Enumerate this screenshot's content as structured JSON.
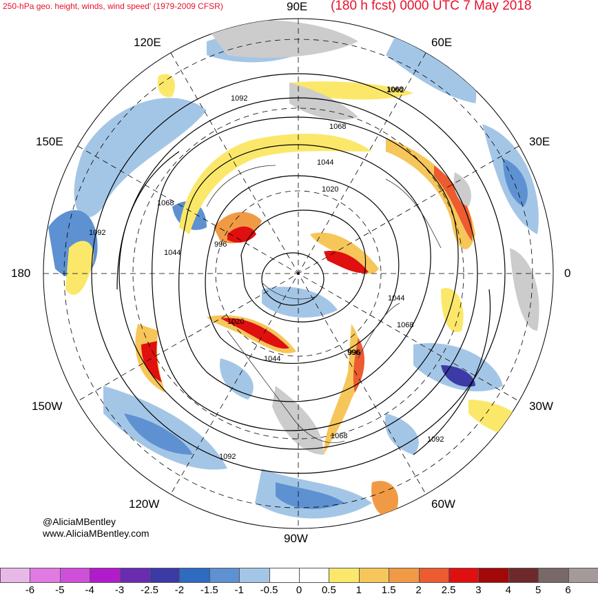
{
  "header": {
    "title_left": "250-hPa geo. height, winds, wind speed' (1979-2009 CFSR)",
    "title_right": "(180 h fcst) 0000 UTC 7 May 2018"
  },
  "longitude_labels": {
    "n90e": "90E",
    "e60e": "60E",
    "e30e": "30E",
    "e0": "0",
    "e30w": "30W",
    "e60w": "60W",
    "s90w": "90W",
    "w120w": "120W",
    "w150w": "150W",
    "w180": "180",
    "w150e": "150E",
    "n120e": "120E"
  },
  "contour_labels": [
    "1092",
    "1068",
    "1044",
    "1020",
    "996",
    "1092",
    "1068",
    "1044",
    "996",
    "1068",
    "1044",
    "1020",
    "996",
    "1044",
    "1068",
    "1068",
    "1092",
    "1092",
    "1092"
  ],
  "credits": {
    "handle": "@AliciaMBentley",
    "website": "www.AliciaMBentley.com"
  },
  "colorbar": {
    "labels": [
      "-6",
      "-5",
      "-4",
      "-3",
      "-2.5",
      "-2",
      "-1.5",
      "-1",
      "-0.5",
      "0",
      "0.5",
      "1",
      "1.5",
      "2",
      "2.5",
      "3",
      "4",
      "5",
      "6"
    ],
    "colors": [
      "#e8b8e8",
      "#e27ae4",
      "#d04fd8",
      "#b21bcc",
      "#6a2bb0",
      "#3c3aa6",
      "#2f6bc0",
      "#5d91d2",
      "#a4c6e6",
      "#ffffff",
      "#ffffff",
      "#fbe86a",
      "#f6c65a",
      "#f19a45",
      "#ec5c30",
      "#e00f10",
      "#a30808",
      "#6e2a2a",
      "#786868",
      "#a59a9a"
    ]
  }
}
